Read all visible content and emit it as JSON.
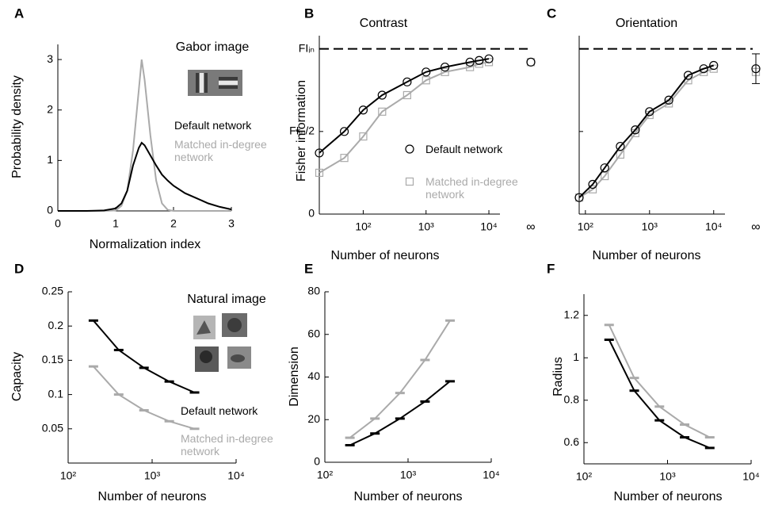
{
  "chart_data": [
    {
      "type": "line",
      "label": "A",
      "xlabel": "Normalization index",
      "ylabel": "Probability density",
      "annotations": [
        "Gabor image"
      ],
      "x": [
        0,
        0.5,
        0.8,
        1.0,
        1.1,
        1.2,
        1.3,
        1.4,
        1.45,
        1.5,
        1.6,
        1.7,
        1.8,
        1.9,
        2.0,
        2.2,
        2.4,
        2.6,
        2.8,
        3.0
      ],
      "series": [
        {
          "name": "Matched in-degree network",
          "color": "#aaaaaa",
          "values": [
            0,
            0,
            0,
            0.01,
            0.1,
            0.4,
            1.2,
            2.4,
            3.0,
            2.6,
            1.5,
            0.6,
            0.15,
            0.02,
            0,
            0,
            0,
            0,
            0,
            0
          ]
        },
        {
          "name": "Default network",
          "color": "#000000",
          "values": [
            0,
            0,
            0.01,
            0.05,
            0.15,
            0.4,
            0.9,
            1.25,
            1.35,
            1.3,
            1.1,
            0.9,
            0.72,
            0.6,
            0.5,
            0.35,
            0.25,
            0.15,
            0.08,
            0.03
          ]
        }
      ],
      "xlim": [
        0,
        3
      ],
      "ylim": [
        0,
        3.3
      ],
      "xticks": [
        0,
        1,
        2,
        3
      ],
      "yticks": [
        0,
        1,
        2,
        3
      ]
    },
    {
      "type": "scatter-line",
      "label": "B",
      "title": "Contrast",
      "xlabel": "Number of neurons",
      "ylabel": "Fisher information",
      "log_x": true,
      "inf_label": "∞",
      "reference_y": 1,
      "x": [
        20,
        50,
        100,
        200,
        500,
        1000,
        2000,
        5000,
        7000,
        10000
      ],
      "series": [
        {
          "name": "Matched in-degree network",
          "color": "#aaaaaa",
          "marker": "square",
          "values": [
            0.25,
            0.34,
            0.47,
            0.62,
            0.72,
            0.81,
            0.86,
            0.89,
            0.91,
            0.92
          ],
          "inf_value": 0.92
        },
        {
          "name": "Default network",
          "color": "#000000",
          "marker": "circle",
          "values": [
            0.37,
            0.5,
            0.63,
            0.72,
            0.8,
            0.86,
            0.89,
            0.92,
            0.93,
            0.94
          ],
          "inf_value": 0.92
        }
      ],
      "xlim": [
        20,
        15000
      ],
      "ylim": [
        0,
        1.08
      ],
      "xticks": [
        {
          "value": 100,
          "label": "10²"
        },
        {
          "value": 1000,
          "label": "10³"
        },
        {
          "value": 10000,
          "label": "10⁴"
        }
      ],
      "yticks": [
        0,
        {
          "value": 0.5,
          "label": "FIᵢₙ/2"
        },
        {
          "value": 1,
          "label": "FIᵢₙ"
        }
      ]
    },
    {
      "type": "scatter-line",
      "label": "C",
      "title": "Orientation",
      "xlabel": "Number of neurons",
      "log_x": true,
      "inf_label": "∞",
      "reference_y": 1,
      "show_ytick_labels": false,
      "x": [
        80,
        130,
        200,
        350,
        600,
        1000,
        2000,
        4000,
        7000,
        10000
      ],
      "series": [
        {
          "color": "#aaaaaa",
          "marker": "square",
          "values": [
            0.1,
            0.15,
            0.23,
            0.36,
            0.49,
            0.6,
            0.67,
            0.81,
            0.86,
            0.88
          ],
          "inf_value": 0.86
        },
        {
          "color": "#000000",
          "marker": "circle",
          "values": [
            0.1,
            0.18,
            0.28,
            0.41,
            0.51,
            0.62,
            0.69,
            0.84,
            0.88,
            0.9
          ],
          "inf_value": 0.88,
          "inf_error": 0.09
        }
      ],
      "xlim": [
        80,
        15000
      ],
      "ylim": [
        0,
        1.08
      ],
      "xticks": [
        {
          "value": 100,
          "label": "10²"
        },
        {
          "value": 1000,
          "label": "10³"
        },
        {
          "value": 10000,
          "label": "10⁴"
        }
      ],
      "yticks": [
        0,
        0.5,
        1
      ]
    },
    {
      "type": "line",
      "label": "D",
      "xlabel": "Number of neurons",
      "ylabel": "Capacity",
      "log_x": true,
      "annotations": [
        "Natural image"
      ],
      "x": [
        200,
        400,
        800,
        1600,
        3200
      ],
      "series": [
        {
          "name": "Matched in-degree network",
          "color": "#aaaaaa",
          "marker": "dash",
          "values": [
            0.141,
            0.1,
            0.077,
            0.061,
            0.05
          ]
        },
        {
          "name": "Default network",
          "color": "#000000",
          "marker": "dash",
          "values": [
            0.208,
            0.165,
            0.139,
            0.119,
            0.103
          ]
        }
      ],
      "xlim": [
        100,
        10000
      ],
      "ylim": [
        0,
        0.25
      ],
      "xticks": [
        {
          "value": 100,
          "label": "10²"
        },
        {
          "value": 1000,
          "label": "10³"
        },
        {
          "value": 10000,
          "label": "10⁴"
        }
      ],
      "yticks": [
        0.05,
        0.1,
        0.15,
        0.2,
        0.25
      ]
    },
    {
      "type": "line",
      "label": "E",
      "xlabel": "Number of neurons",
      "ylabel": "Dimension",
      "log_x": true,
      "x": [
        200,
        400,
        800,
        1600,
        3200
      ],
      "series": [
        {
          "color": "#aaaaaa",
          "marker": "dash",
          "values": [
            11.5,
            20.5,
            32.5,
            48,
            66.5
          ]
        },
        {
          "color": "#000000",
          "marker": "dash",
          "values": [
            8,
            13.5,
            20.5,
            28.5,
            38
          ]
        }
      ],
      "xlim": [
        100,
        10000
      ],
      "ylim": [
        0,
        80
      ],
      "xticks": [
        {
          "value": 100,
          "label": "10²"
        },
        {
          "value": 1000,
          "label": "10³"
        },
        {
          "value": 10000,
          "label": "10⁴"
        }
      ],
      "yticks": [
        0,
        20,
        40,
        60,
        80
      ]
    },
    {
      "type": "line",
      "label": "F",
      "xlabel": "Number of neurons",
      "ylabel": "Radius",
      "log_x": true,
      "x": [
        200,
        400,
        800,
        1600,
        3200
      ],
      "series": [
        {
          "color": "#aaaaaa",
          "marker": "dash",
          "values": [
            1.155,
            0.905,
            0.77,
            0.685,
            0.625
          ]
        },
        {
          "color": "#000000",
          "marker": "dash",
          "values": [
            1.085,
            0.845,
            0.705,
            0.625,
            0.575
          ]
        }
      ],
      "xlim": [
        100,
        10000
      ],
      "ylim": [
        0.5,
        1.3
      ],
      "xticks": [
        {
          "value": 100,
          "label": "10²"
        },
        {
          "value": 1000,
          "label": "10³"
        },
        {
          "value": 10000,
          "label": "10⁴"
        }
      ],
      "yticks": [
        0.6,
        0.8,
        1,
        1.2
      ]
    }
  ]
}
